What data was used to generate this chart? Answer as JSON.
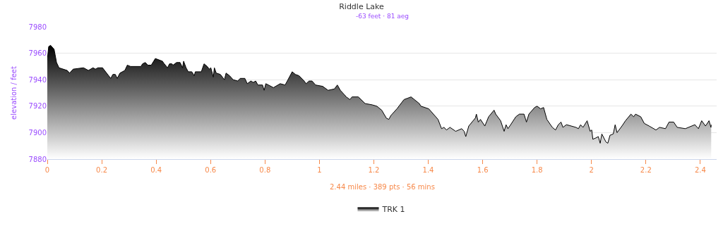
{
  "chart_data": {
    "type": "area",
    "title": "Riddle Lake",
    "subtitle": "-63 feet · 81 aeg",
    "ylabel": "elevation / feet",
    "annotations": [
      "2.44 miles · 389 pts · 56 mins"
    ],
    "xlim": [
      0,
      2.46
    ],
    "xticks": [
      0,
      0.2,
      0.4,
      0.6,
      0.8,
      1,
      1.2,
      1.4,
      1.6,
      1.8,
      2,
      2.2,
      2.4
    ],
    "ylim": [
      7880,
      7980
    ],
    "yticks": [
      7880,
      7900,
      7920,
      7940,
      7960,
      7980
    ],
    "grid": "y",
    "legend": "bottom",
    "marker": "none",
    "line_style": "solid",
    "series": [
      {
        "name": "TRK 1",
        "color": "#000000",
        "x": [
          0,
          0.005,
          0.012,
          0.025,
          0.034,
          0.043,
          0.073,
          0.082,
          0.095,
          0.133,
          0.151,
          0.168,
          0.177,
          0.186,
          0.203,
          0.233,
          0.241,
          0.25,
          0.257,
          0.267,
          0.285,
          0.294,
          0.306,
          0.344,
          0.35,
          0.36,
          0.37,
          0.382,
          0.397,
          0.423,
          0.43,
          0.442,
          0.449,
          0.458,
          0.462,
          0.475,
          0.488,
          0.497,
          0.501,
          0.51,
          0.518,
          0.531,
          0.54,
          0.544,
          0.566,
          0.576,
          0.588,
          0.595,
          0.601,
          0.61,
          0.614,
          0.621,
          0.636,
          0.651,
          0.657,
          0.67,
          0.683,
          0.7,
          0.709,
          0.726,
          0.735,
          0.748,
          0.757,
          0.766,
          0.774,
          0.791,
          0.797,
          0.803,
          0.813,
          0.831,
          0.856,
          0.874,
          0.882,
          0.9,
          0.912,
          0.925,
          0.944,
          0.951,
          0.962,
          0.973,
          0.986,
          1.012,
          1.032,
          1.055,
          1.066,
          1.077,
          1.099,
          1.112,
          1.12,
          1.143,
          1.168,
          1.194,
          1.211,
          1.229,
          1.246,
          1.255,
          1.263,
          1.285,
          1.311,
          1.324,
          1.337,
          1.367,
          1.373,
          1.402,
          1.436,
          1.449,
          1.458,
          1.467,
          1.48,
          1.501,
          1.523,
          1.532,
          1.538,
          1.549,
          1.573,
          1.577,
          1.584,
          1.592,
          1.608,
          1.622,
          1.642,
          1.648,
          1.666,
          1.679,
          1.686,
          1.693,
          1.703,
          1.722,
          1.735,
          1.752,
          1.761,
          1.77,
          1.791,
          1.8,
          1.813,
          1.824,
          1.836,
          1.856,
          1.868,
          1.878,
          1.888,
          1.895,
          1.908,
          1.943,
          1.952,
          1.96,
          1.969,
          1.984,
          1.995,
          2.001,
          2.005,
          2.016,
          2.025,
          2.032,
          2.038,
          2.053,
          2.06,
          2.068,
          2.08,
          2.087,
          2.094,
          2.112,
          2.125,
          2.145,
          2.155,
          2.162,
          2.181,
          2.194,
          2.212,
          2.237,
          2.25,
          2.272,
          2.285,
          2.302,
          2.315,
          2.345,
          2.38,
          2.393,
          2.405,
          2.419,
          2.432,
          2.439,
          2.44
        ],
        "values": [
          7955,
          7965,
          7966,
          7963,
          7953,
          7949,
          7947,
          7945,
          7948,
          7949,
          7947,
          7949,
          7948,
          7949,
          7949,
          7941,
          7944,
          7944,
          7941,
          7945,
          7947,
          7951,
          7950,
          7950,
          7952,
          7953,
          7951,
          7951,
          7956,
          7954,
          7952,
          7949,
          7952,
          7952,
          7951,
          7953,
          7953,
          7949,
          7954,
          7949,
          7946,
          7946,
          7943,
          7946,
          7946,
          7952,
          7950,
          7948,
          7949,
          7942,
          7949,
          7945,
          7944,
          7940,
          7945,
          7943,
          7940,
          7939,
          7941,
          7941,
          7937,
          7939,
          7938,
          7939,
          7936,
          7936,
          7932,
          7937,
          7936,
          7934,
          7937,
          7936,
          7939,
          7946,
          7944,
          7943,
          7939,
          7937,
          7939,
          7939,
          7936,
          7935,
          7932,
          7933,
          7936,
          7932,
          7927,
          7925,
          7927,
          7927,
          7922,
          7921,
          7920,
          7917,
          7911,
          7910,
          7913,
          7918,
          7925,
          7926,
          7927,
          7922,
          7920,
          7918,
          7910,
          7903,
          7904,
          7902,
          7904,
          7901,
          7903,
          7901,
          7897,
          7905,
          7911,
          7914,
          7908,
          7910,
          7905,
          7912,
          7917,
          7914,
          7909,
          7901,
          7906,
          7903,
          7906,
          7912,
          7914,
          7914,
          7908,
          7914,
          7919,
          7920,
          7918,
          7919,
          7910,
          7904,
          7902,
          7906,
          7908,
          7904,
          7906,
          7904,
          7903,
          7906,
          7904,
          7909,
          7901,
          7902,
          7895,
          7896,
          7897,
          7892,
          7899,
          7893,
          7892,
          7898,
          7899,
          7906,
          7900,
          7905,
          7909,
          7914,
          7912,
          7914,
          7912,
          7907,
          7905,
          7902,
          7904,
          7903,
          7908,
          7908,
          7904,
          7903,
          7906,
          7903,
          7909,
          7905,
          7909,
          7904,
          7906
        ]
      }
    ]
  }
}
